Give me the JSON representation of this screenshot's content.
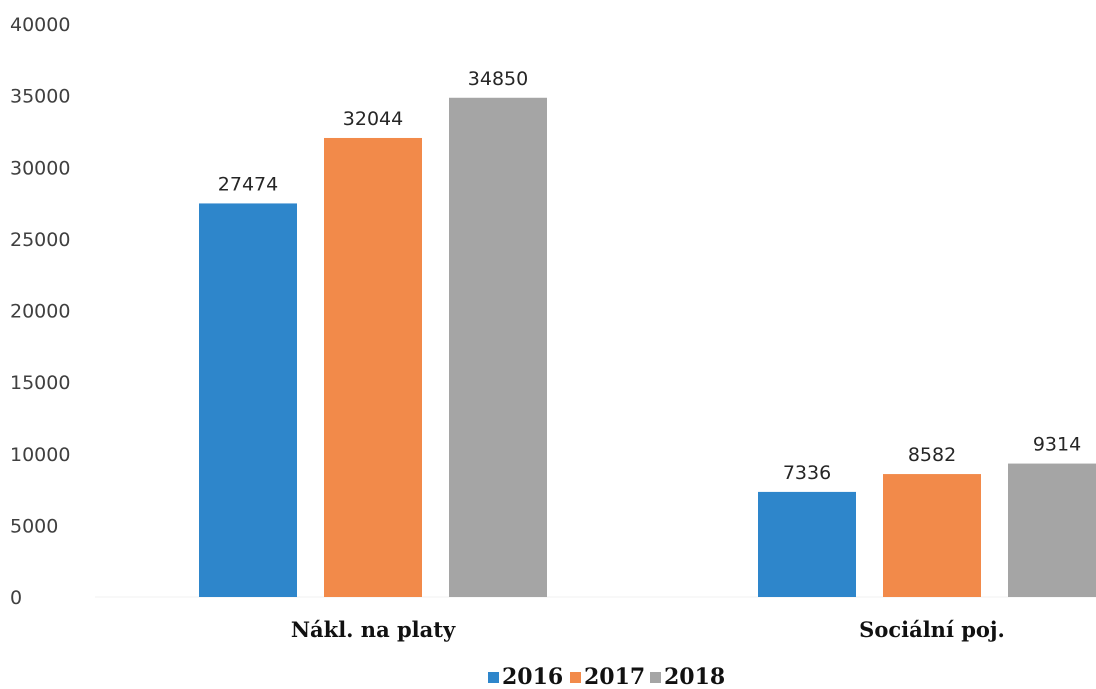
{
  "chart_data": {
    "type": "bar",
    "title": "",
    "xlabel": "",
    "ylabel": "",
    "categories": [
      "Nákl. na platy",
      "Sociální poj."
    ],
    "series": [
      {
        "name": "2016",
        "values": [
          27474,
          7336
        ],
        "color": "#2E86CB"
      },
      {
        "name": "2017",
        "values": [
          32044,
          8582
        ],
        "color": "#F28A4A"
      },
      {
        "name": "2018",
        "values": [
          34850,
          9314
        ],
        "color": "#A5A5A5"
      }
    ],
    "ylim": [
      0,
      40000
    ],
    "yticks": [
      0,
      5000,
      10000,
      15000,
      20000,
      25000,
      30000,
      35000,
      40000
    ],
    "grid": false,
    "legend": "bottom"
  }
}
